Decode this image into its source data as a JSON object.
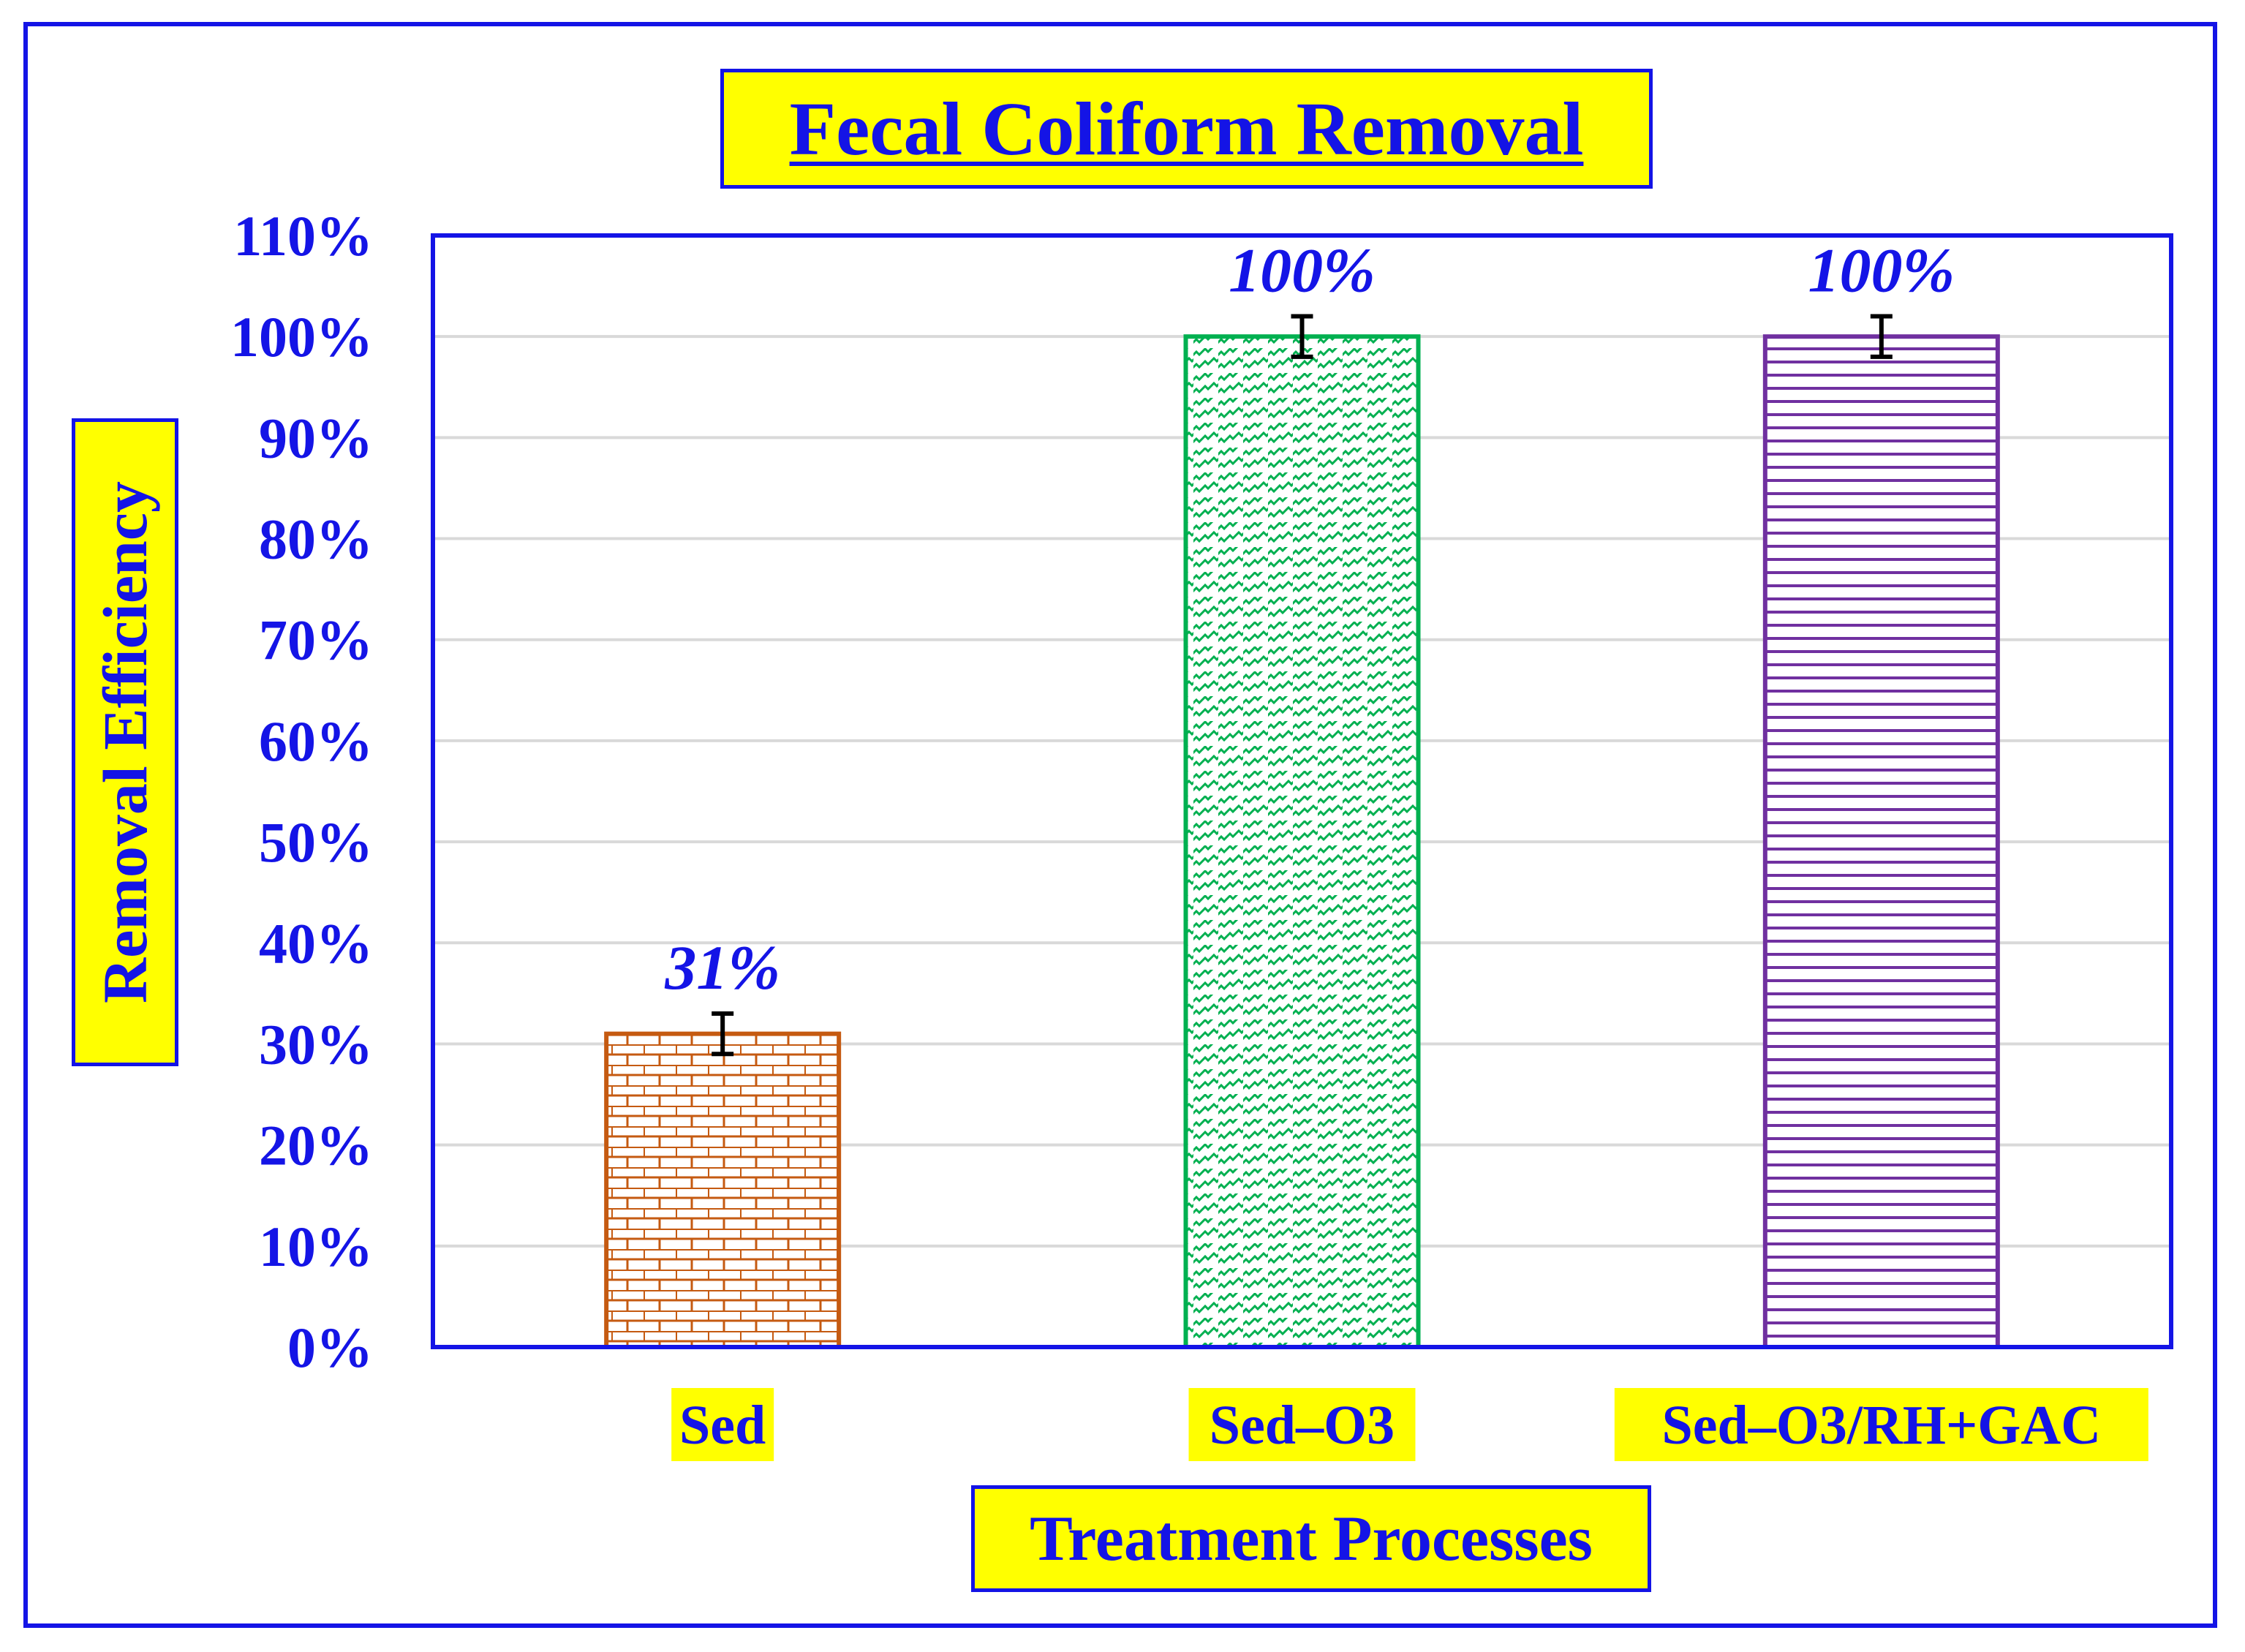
{
  "title": "Fecal Coliform Removal",
  "colors": {
    "frame": "#1414e6",
    "label_bg": "#ffff00",
    "text": "#1414e6",
    "grid": "#d9d9d9"
  },
  "chart_data": {
    "type": "bar",
    "title": "Fecal Coliform Removal",
    "xlabel": "Treatment Processes",
    "ylabel": "Removal Efficiency",
    "categories": [
      "Sed",
      "Sed–O3",
      "Sed–O3/RH+GAC"
    ],
    "values": [
      31,
      100,
      100
    ],
    "data_labels": [
      "31%",
      "100%",
      "100%"
    ],
    "error": [
      2,
      2,
      2
    ],
    "bar_colors": [
      "#c55a11",
      "#00b050",
      "#7030a0"
    ],
    "bar_patterns": [
      "brick",
      "zigzag-diagonal",
      "horizontal-lines"
    ],
    "ylim": [
      0,
      110
    ],
    "yticks": [
      0,
      10,
      20,
      30,
      40,
      50,
      60,
      70,
      80,
      90,
      100,
      110
    ],
    "ytick_labels": [
      "0%",
      "10%",
      "20%",
      "30%",
      "40%",
      "50%",
      "60%",
      "70%",
      "80%",
      "90%",
      "100%",
      "110%"
    ],
    "grid": true,
    "legend": "none"
  }
}
